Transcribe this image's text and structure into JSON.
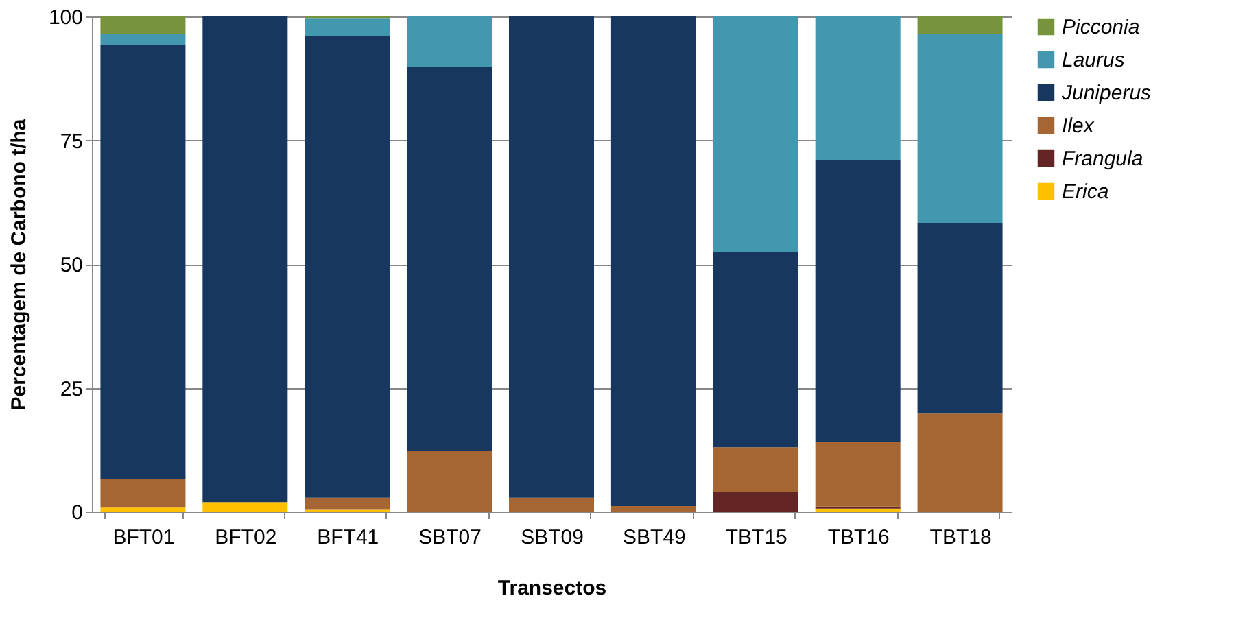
{
  "chart_data": {
    "type": "bar",
    "stacked": true,
    "xlabel": "Transectos",
    "ylabel": "Percentagem de Carbono t/ha",
    "categories": [
      "BFT01",
      "BFT02",
      "BFT41",
      "SBT07",
      "SBT09",
      "SBT49",
      "TBT15",
      "TBT16",
      "TBT18"
    ],
    "series": [
      {
        "name": "Erica",
        "color": "#ffc000",
        "values": [
          0.8,
          1.9,
          0.5,
          0,
          0,
          0,
          0,
          0.6,
          0
        ]
      },
      {
        "name": "Frangula",
        "color": "#632523",
        "values": [
          0,
          0,
          0,
          0,
          0,
          0,
          3.9,
          0.4,
          0
        ]
      },
      {
        "name": "Ilex",
        "color": "#a66633",
        "values": [
          5.8,
          0,
          2.3,
          12.2,
          2.8,
          1.1,
          9.1,
          13.1,
          19.9
        ]
      },
      {
        "name": "Juniperus",
        "color": "#17375e",
        "values": [
          87.6,
          98.1,
          93.3,
          77.6,
          97.2,
          98.9,
          39.5,
          56.9,
          38.4
        ]
      },
      {
        "name": "Laurus",
        "color": "#4398b0",
        "values": [
          2.2,
          0,
          3.6,
          10.2,
          0,
          0,
          47.5,
          29.0,
          38.1
        ]
      },
      {
        "name": "Picconia",
        "color": "#77933c",
        "values": [
          3.6,
          0,
          0.3,
          0,
          0,
          0,
          0,
          0,
          3.6
        ]
      }
    ],
    "ylim": [
      0,
      100
    ],
    "yticks": [
      0,
      25,
      50,
      75,
      100
    ],
    "grid": "y",
    "legend": "top right"
  }
}
